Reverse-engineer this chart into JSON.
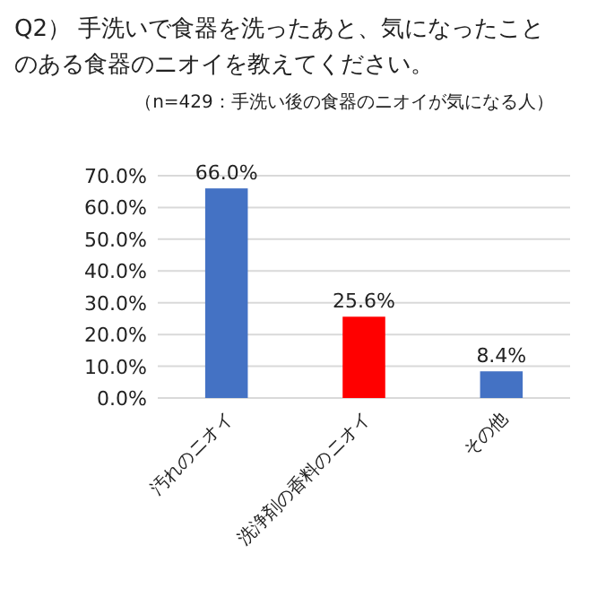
{
  "chart_data": {
    "type": "bar",
    "title": "Q2） 手洗いで食器を洗ったあと、気になったことのある食器のニオイを教えてください。",
    "subtitle": "（n=429：手洗い後の食器のニオイが気になる人）",
    "categories": [
      "汚れのニオイ",
      "洗浄剤の香料のニオイ",
      "その他"
    ],
    "values": [
      66.0,
      25.6,
      8.4
    ],
    "colors": [
      "#4472c4",
      "#ff0000",
      "#4472c4"
    ],
    "value_labels": [
      "66.0%",
      "25.6%",
      "8.4%"
    ],
    "ylim": [
      0,
      70
    ],
    "yticks": [
      {
        "value": 0,
        "label": "0.0%"
      },
      {
        "value": 10,
        "label": "10.0%"
      },
      {
        "value": 20,
        "label": "20.0%"
      },
      {
        "value": 30,
        "label": "30.0%"
      },
      {
        "value": 40,
        "label": "40.0%"
      },
      {
        "value": 50,
        "label": "50.0%"
      },
      {
        "value": 60,
        "label": "60.0%"
      },
      {
        "value": 70,
        "label": "70.0%"
      }
    ],
    "grid": "y"
  }
}
